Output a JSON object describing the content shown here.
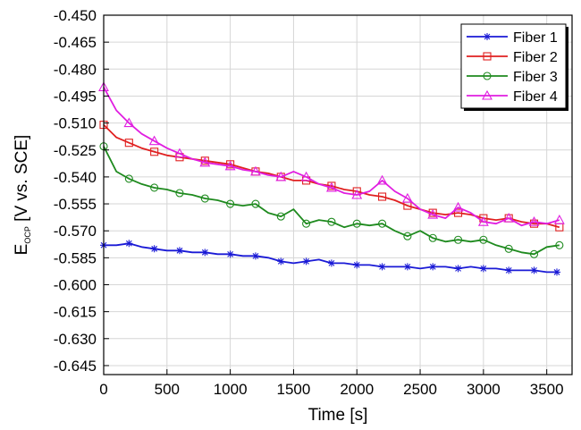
{
  "chart_data": {
    "type": "line",
    "title": "",
    "xlabel": "Time [s]",
    "ylabel": "E",
    "ylabel_sub": "OCP",
    "ylabel_suffix": " [V vs. SCE]",
    "xlim": [
      0,
      3700
    ],
    "ylim": [
      -0.65,
      -0.45
    ],
    "xticks": [
      0,
      500,
      1000,
      1500,
      2000,
      2500,
      3000,
      3500
    ],
    "yticks": [
      -0.45,
      -0.465,
      -0.48,
      -0.495,
      -0.51,
      -0.525,
      -0.54,
      -0.555,
      -0.57,
      -0.585,
      -0.6,
      -0.615,
      -0.63,
      -0.645
    ],
    "xtick_labels": [
      "0",
      "500",
      "1000",
      "1500",
      "2000",
      "2500",
      "3000",
      "3500"
    ],
    "ytick_labels": [
      "-0.450",
      "-0.465",
      "-0.480",
      "-0.495",
      "-0.510",
      "-0.525",
      "-0.540",
      "-0.555",
      "-0.570",
      "-0.585",
      "-0.600",
      "-0.615",
      "-0.630",
      "-0.645"
    ],
    "grid": true,
    "legend_position": "top-right",
    "series": [
      {
        "name": "Fiber 1",
        "color": "#1a1ad6",
        "marker": "star",
        "x": [
          0,
          100,
          200,
          300,
          400,
          500,
          600,
          700,
          800,
          900,
          1000,
          1100,
          1200,
          1300,
          1400,
          1500,
          1600,
          1700,
          1800,
          1900,
          2000,
          2100,
          2200,
          2300,
          2400,
          2500,
          2600,
          2700,
          2800,
          2900,
          3000,
          3100,
          3200,
          3300,
          3400,
          3500,
          3580
        ],
        "y": [
          -0.578,
          -0.578,
          -0.577,
          -0.579,
          -0.58,
          -0.581,
          -0.581,
          -0.582,
          -0.582,
          -0.583,
          -0.583,
          -0.584,
          -0.584,
          -0.585,
          -0.587,
          -0.588,
          -0.587,
          -0.586,
          -0.588,
          -0.588,
          -0.589,
          -0.589,
          -0.59,
          -0.59,
          -0.59,
          -0.591,
          -0.59,
          -0.59,
          -0.591,
          -0.59,
          -0.591,
          -0.591,
          -0.592,
          -0.592,
          -0.592,
          -0.593,
          -0.593
        ]
      },
      {
        "name": "Fiber 2",
        "color": "#e02020",
        "marker": "square",
        "x": [
          0,
          100,
          200,
          300,
          400,
          500,
          600,
          700,
          800,
          900,
          1000,
          1100,
          1200,
          1300,
          1400,
          1500,
          1600,
          1700,
          1800,
          1900,
          2000,
          2100,
          2200,
          2300,
          2400,
          2500,
          2600,
          2700,
          2800,
          2900,
          3000,
          3100,
          3200,
          3300,
          3400,
          3500,
          3600
        ],
        "y": [
          -0.511,
          -0.518,
          -0.521,
          -0.524,
          -0.526,
          -0.528,
          -0.529,
          -0.53,
          -0.531,
          -0.532,
          -0.533,
          -0.535,
          -0.537,
          -0.538,
          -0.54,
          -0.542,
          -0.542,
          -0.544,
          -0.545,
          -0.547,
          -0.548,
          -0.55,
          -0.551,
          -0.553,
          -0.556,
          -0.558,
          -0.56,
          -0.561,
          -0.56,
          -0.561,
          -0.563,
          -0.564,
          -0.563,
          -0.565,
          -0.566,
          -0.566,
          -0.568
        ]
      },
      {
        "name": "Fiber 3",
        "color": "#1e8a1e",
        "marker": "circle",
        "x": [
          0,
          100,
          200,
          300,
          400,
          500,
          600,
          700,
          800,
          900,
          1000,
          1100,
          1200,
          1300,
          1400,
          1500,
          1600,
          1700,
          1800,
          1900,
          2000,
          2100,
          2200,
          2300,
          2400,
          2500,
          2600,
          2700,
          2800,
          2900,
          3000,
          3100,
          3200,
          3300,
          3400,
          3500,
          3600
        ],
        "y": [
          -0.523,
          -0.537,
          -0.541,
          -0.544,
          -0.546,
          -0.547,
          -0.549,
          -0.55,
          -0.552,
          -0.553,
          -0.555,
          -0.556,
          -0.555,
          -0.56,
          -0.562,
          -0.558,
          -0.566,
          -0.564,
          -0.565,
          -0.568,
          -0.566,
          -0.567,
          -0.566,
          -0.57,
          -0.573,
          -0.57,
          -0.574,
          -0.576,
          -0.575,
          -0.576,
          -0.575,
          -0.578,
          -0.58,
          -0.582,
          -0.583,
          -0.579,
          -0.578
        ]
      },
      {
        "name": "Fiber 4",
        "color": "#e01ee0",
        "marker": "triangle",
        "x": [
          0,
          100,
          200,
          300,
          400,
          500,
          600,
          700,
          800,
          900,
          1000,
          1100,
          1200,
          1300,
          1400,
          1500,
          1600,
          1700,
          1800,
          1900,
          2000,
          2100,
          2200,
          2300,
          2400,
          2500,
          2600,
          2700,
          2800,
          2900,
          3000,
          3100,
          3200,
          3300,
          3400,
          3500,
          3600
        ],
        "y": [
          -0.49,
          -0.503,
          -0.51,
          -0.516,
          -0.52,
          -0.524,
          -0.527,
          -0.53,
          -0.532,
          -0.533,
          -0.534,
          -0.536,
          -0.537,
          -0.539,
          -0.54,
          -0.537,
          -0.54,
          -0.544,
          -0.546,
          -0.549,
          -0.55,
          -0.548,
          -0.542,
          -0.548,
          -0.552,
          -0.558,
          -0.561,
          -0.563,
          -0.557,
          -0.56,
          -0.565,
          -0.566,
          -0.563,
          -0.567,
          -0.565,
          -0.566,
          -0.564
        ]
      }
    ]
  }
}
